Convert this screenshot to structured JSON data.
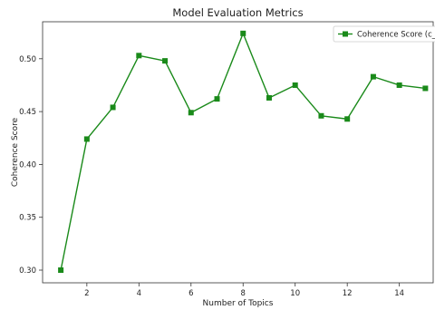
{
  "chart_data": {
    "type": "line",
    "title": "Model Evaluation Metrics",
    "xlabel": "Number of Topics",
    "ylabel": "Coherence Score",
    "xlim": [
      0.3,
      15.3
    ],
    "ylim": [
      0.288,
      0.535
    ],
    "xticks": [
      2,
      4,
      6,
      8,
      10,
      12,
      14
    ],
    "xtick_labels": [
      "2",
      "4",
      "6",
      "8",
      "10",
      "12",
      "14"
    ],
    "yticks": [
      0.3,
      0.35,
      0.4,
      0.45,
      0.5
    ],
    "ytick_labels": [
      "0.30",
      "0.35",
      "0.40",
      "0.45",
      "0.50"
    ],
    "grid": false,
    "legend": "top-right",
    "series": [
      {
        "name": "Coherence Score (c_v",
        "color": "#1a8a1a",
        "marker": "square",
        "x": [
          1,
          2,
          3,
          4,
          5,
          6,
          7,
          8,
          9,
          10,
          11,
          12,
          13,
          14,
          15
        ],
        "values": [
          0.3,
          0.424,
          0.454,
          0.503,
          0.498,
          0.449,
          0.462,
          0.524,
          0.463,
          0.475,
          0.446,
          0.443,
          0.483,
          0.475,
          0.472
        ]
      }
    ]
  }
}
